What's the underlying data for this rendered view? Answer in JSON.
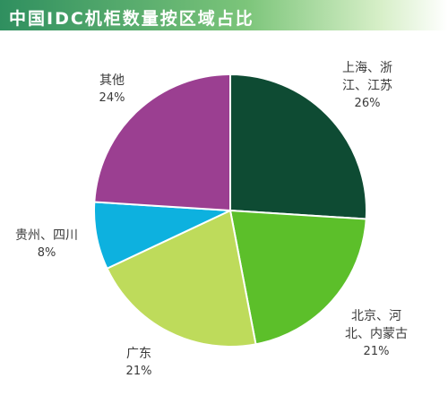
{
  "title": "中国IDC机柜数量按区域占比",
  "chart_data": {
    "type": "pie",
    "title": "中国IDC机柜数量按区域占比",
    "slices": [
      {
        "label_lines": [
          "上海、浙",
          "江、江苏"
        ],
        "value": 26,
        "percent_label": "26%",
        "color": "#0e4b33"
      },
      {
        "label_lines": [
          "北京、河",
          "北、内蒙古"
        ],
        "value": 21,
        "percent_label": "21%",
        "color": "#5cbf2a"
      },
      {
        "label_lines": [
          "广东"
        ],
        "value": 21,
        "percent_label": "21%",
        "color": "#bedb5b"
      },
      {
        "label_lines": [
          "贵州、四川"
        ],
        "value": 8,
        "percent_label": "8%",
        "color": "#0db1df"
      },
      {
        "label_lines": [
          "其他"
        ],
        "value": 24,
        "percent_label": "24%",
        "color": "#9b3f91"
      }
    ],
    "start_angle_deg": 0,
    "direction": "clockwise",
    "legend": "none"
  }
}
